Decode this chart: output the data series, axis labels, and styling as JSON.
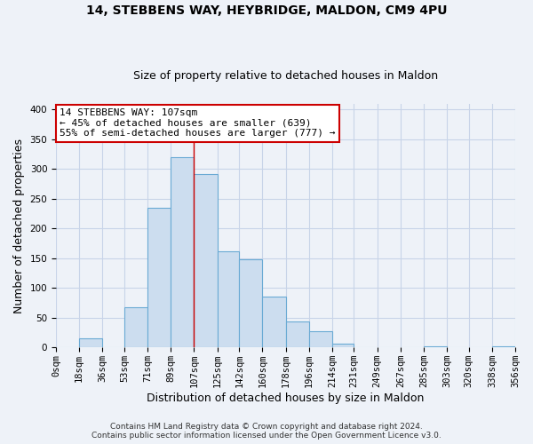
{
  "title": "14, STEBBENS WAY, HEYBRIDGE, MALDON, CM9 4PU",
  "subtitle": "Size of property relative to detached houses in Maldon",
  "xlabel": "Distribution of detached houses by size in Maldon",
  "ylabel": "Number of detached properties",
  "bin_edges": [
    0,
    18,
    36,
    53,
    71,
    89,
    107,
    125,
    142,
    160,
    178,
    196,
    214,
    231,
    249,
    267,
    285,
    303,
    320,
    338,
    356
  ],
  "bin_labels": [
    "0sqm",
    "18sqm",
    "36sqm",
    "53sqm",
    "71sqm",
    "89sqm",
    "107sqm",
    "125sqm",
    "142sqm",
    "160sqm",
    "178sqm",
    "196sqm",
    "214sqm",
    "231sqm",
    "249sqm",
    "267sqm",
    "285sqm",
    "303sqm",
    "320sqm",
    "338sqm",
    "356sqm"
  ],
  "counts": [
    0,
    15,
    0,
    68,
    235,
    320,
    292,
    162,
    148,
    85,
    44,
    28,
    7,
    0,
    0,
    0,
    2,
    0,
    0,
    2
  ],
  "bar_color": "#ccddef",
  "bar_edge_color": "#6aaad4",
  "grid_color": "#c8d4e8",
  "reference_line_x": 107,
  "reference_line_color": "#cc0000",
  "annotation_line1": "14 STEBBENS WAY: 107sqm",
  "annotation_line2": "← 45% of detached houses are smaller (639)",
  "annotation_line3": "55% of semi-detached houses are larger (777) →",
  "annotation_box_color": "#ffffff",
  "annotation_box_edge": "#cc0000",
  "ylim": [
    0,
    410
  ],
  "yticks": [
    0,
    50,
    100,
    150,
    200,
    250,
    300,
    350,
    400
  ],
  "footer_line1": "Contains HM Land Registry data © Crown copyright and database right 2024.",
  "footer_line2": "Contains public sector information licensed under the Open Government Licence v3.0.",
  "background_color": "#eef2f8",
  "plot_background_color": "#eef2f8",
  "title_fontsize": 10,
  "subtitle_fontsize": 9,
  "tick_fontsize": 7.5,
  "axis_label_fontsize": 9,
  "footer_fontsize": 6.5
}
